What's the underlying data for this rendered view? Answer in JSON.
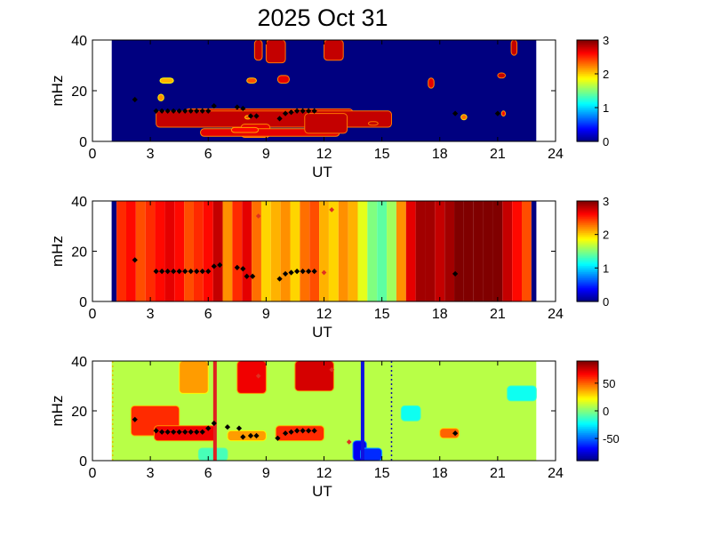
{
  "figure": {
    "title": "2025 Oct 31"
  },
  "chart_data": [
    {
      "type": "heatmap",
      "name": "panel-1",
      "xlabel": "UT",
      "ylabel": "mHz",
      "xlim": [
        0,
        24
      ],
      "ylim": [
        0,
        40
      ],
      "xticks": [
        "0",
        "3",
        "6",
        "9",
        "12",
        "15",
        "18",
        "21",
        "24"
      ],
      "yticks": [
        "0",
        "20",
        "40"
      ],
      "data_x_range": [
        1,
        23
      ],
      "colorbar": {
        "range": [
          0,
          3
        ],
        "ticks": [
          "0",
          "1",
          "2",
          "3"
        ]
      },
      "background_value": 0,
      "patches": [
        {
          "x": [
            4.8,
            13.5
          ],
          "y": [
            6.4,
            12.8
          ],
          "value": 2.8
        },
        {
          "x": [
            3.3,
            15.5
          ],
          "y": [
            5.6,
            12.0
          ],
          "value": 2.8
        },
        {
          "x": [
            7.7,
            9.2
          ],
          "y": [
            1.6,
            6.8
          ],
          "value": 2.7
        },
        {
          "x": [
            5.6,
            12.8
          ],
          "y": [
            2.0,
            5.0
          ],
          "value": 2.7
        },
        {
          "x": [
            11.0,
            13.2
          ],
          "y": [
            3.2,
            11.0
          ],
          "value": 2.8
        },
        {
          "x": [
            8.4,
            8.8
          ],
          "y": [
            32.0,
            40.0
          ],
          "value": 2.8
        },
        {
          "x": [
            9.0,
            10.0
          ],
          "y": [
            31.0,
            40.0
          ],
          "value": 2.8
        },
        {
          "x": [
            12.0,
            13.0
          ],
          "y": [
            32.0,
            40.0
          ],
          "value": 2.8
        },
        {
          "x": [
            8.0,
            8.5
          ],
          "y": [
            23.0,
            25.0
          ],
          "value": 2.4
        },
        {
          "x": [
            17.4,
            17.7
          ],
          "y": [
            21.0,
            25.0
          ],
          "value": 2.7
        },
        {
          "x": [
            9.6,
            10.2
          ],
          "y": [
            23.0,
            26.0
          ],
          "value": 2.7
        },
        {
          "x": [
            7.2,
            8.6
          ],
          "y": [
            3.5,
            5.5
          ],
          "value": 2.6
        },
        {
          "x": [
            7.9,
            8.2
          ],
          "y": [
            8.8,
            10.2
          ],
          "value": 2.4
        },
        {
          "x": [
            3.4,
            3.7
          ],
          "y": [
            16.0,
            18.6
          ],
          "value": 2.2
        },
        {
          "x": [
            3.5,
            4.2
          ],
          "y": [
            23.0,
            25.0
          ],
          "value": 2.1
        },
        {
          "x": [
            14.3,
            14.8
          ],
          "y": [
            6.4,
            7.8
          ],
          "value": 2.8
        },
        {
          "x": [
            19.1,
            19.4
          ],
          "y": [
            8.5,
            10.6
          ],
          "value": 2.3
        },
        {
          "x": [
            21.2,
            21.4
          ],
          "y": [
            10.0,
            12.0
          ],
          "value": 2.6
        },
        {
          "x": [
            21.7,
            22.0
          ],
          "y": [
            34.0,
            40.0
          ],
          "value": 2.8
        },
        {
          "x": [
            21.0,
            21.4
          ],
          "y": [
            25.0,
            27.0
          ],
          "value": 2.8
        }
      ],
      "markers": {
        "black": [
          [
            2.2,
            16.5
          ],
          [
            3.3,
            12.0
          ],
          [
            3.6,
            12.0
          ],
          [
            3.9,
            12.0
          ],
          [
            4.2,
            12.0
          ],
          [
            4.5,
            12.0
          ],
          [
            4.8,
            12.0
          ],
          [
            5.1,
            12.0
          ],
          [
            5.4,
            12.0
          ],
          [
            5.7,
            12.0
          ],
          [
            6.0,
            12.0
          ],
          [
            6.3,
            14.0
          ],
          [
            7.5,
            13.5
          ],
          [
            7.8,
            13.0
          ],
          [
            8.2,
            10.0
          ],
          [
            8.5,
            10.0
          ],
          [
            9.7,
            9.0
          ],
          [
            10.0,
            11.0
          ],
          [
            10.3,
            11.5
          ],
          [
            10.6,
            12.0
          ],
          [
            10.9,
            12.0
          ],
          [
            11.2,
            12.0
          ],
          [
            11.5,
            12.0
          ],
          [
            18.8,
            11.0
          ],
          [
            21.0,
            11.0
          ]
        ],
        "red": []
      }
    },
    {
      "type": "heatmap",
      "name": "panel-2",
      "xlabel": "UT",
      "ylabel": "mHz",
      "xlim": [
        0,
        24
      ],
      "ylim": [
        0,
        40
      ],
      "xticks": [
        "0",
        "3",
        "6",
        "9",
        "12",
        "15",
        "18",
        "21",
        "24"
      ],
      "yticks": [
        "0",
        "20",
        "40"
      ],
      "data_x_range": [
        1,
        23
      ],
      "colorbar": {
        "range": [
          0,
          3
        ],
        "ticks": [
          "0",
          "1",
          "2",
          "3"
        ]
      },
      "columns": [
        {
          "x": 1.0,
          "value": 0.0
        },
        {
          "x": 1.5,
          "value": 2.5
        },
        {
          "x": 2.0,
          "value": 2.6
        },
        {
          "x": 2.5,
          "value": 2.4
        },
        {
          "x": 3.0,
          "value": 2.5
        },
        {
          "x": 3.5,
          "value": 2.6
        },
        {
          "x": 4.0,
          "value": 2.7
        },
        {
          "x": 4.5,
          "value": 2.6
        },
        {
          "x": 5.0,
          "value": 2.4
        },
        {
          "x": 5.5,
          "value": 2.5
        },
        {
          "x": 6.0,
          "value": 2.6
        },
        {
          "x": 6.5,
          "value": 2.8
        },
        {
          "x": 7.0,
          "value": 2.2
        },
        {
          "x": 7.5,
          "value": 2.5
        },
        {
          "x": 8.0,
          "value": 2.7
        },
        {
          "x": 8.5,
          "value": 2.3
        },
        {
          "x": 9.0,
          "value": 2.0
        },
        {
          "x": 9.5,
          "value": 2.1
        },
        {
          "x": 10.0,
          "value": 2.2
        },
        {
          "x": 10.5,
          "value": 2.0
        },
        {
          "x": 11.0,
          "value": 2.3
        },
        {
          "x": 11.5,
          "value": 2.4
        },
        {
          "x": 12.0,
          "value": 2.1
        },
        {
          "x": 12.5,
          "value": 2.0
        },
        {
          "x": 13.0,
          "value": 2.2
        },
        {
          "x": 13.5,
          "value": 2.1
        },
        {
          "x": 14.0,
          "value": 1.8
        },
        {
          "x": 14.5,
          "value": 1.5
        },
        {
          "x": 15.0,
          "value": 1.4
        },
        {
          "x": 15.5,
          "value": 1.6
        },
        {
          "x": 16.0,
          "value": 2.2
        },
        {
          "x": 16.5,
          "value": 2.7
        },
        {
          "x": 17.0,
          "value": 2.9
        },
        {
          "x": 17.5,
          "value": 2.9
        },
        {
          "x": 18.0,
          "value": 2.8
        },
        {
          "x": 18.5,
          "value": 2.9
        },
        {
          "x": 19.0,
          "value": 3.0
        },
        {
          "x": 19.5,
          "value": 3.0
        },
        {
          "x": 20.0,
          "value": 3.0
        },
        {
          "x": 20.5,
          "value": 3.0
        },
        {
          "x": 21.0,
          "value": 3.0
        },
        {
          "x": 21.5,
          "value": 2.8
        },
        {
          "x": 22.0,
          "value": 2.6
        },
        {
          "x": 22.5,
          "value": 2.4
        },
        {
          "x": 23.0,
          "value": 0.0
        }
      ],
      "markers": {
        "black": [
          [
            2.2,
            16.5
          ],
          [
            3.3,
            12.0
          ],
          [
            3.6,
            12.0
          ],
          [
            3.9,
            12.0
          ],
          [
            4.2,
            12.0
          ],
          [
            4.5,
            12.0
          ],
          [
            4.8,
            12.0
          ],
          [
            5.1,
            12.0
          ],
          [
            5.4,
            12.0
          ],
          [
            5.7,
            12.0
          ],
          [
            6.0,
            12.0
          ],
          [
            6.3,
            14.0
          ],
          [
            6.6,
            14.5
          ],
          [
            7.5,
            13.5
          ],
          [
            7.8,
            13.0
          ],
          [
            8.0,
            10.0
          ],
          [
            8.3,
            10.0
          ],
          [
            9.7,
            9.0
          ],
          [
            10.0,
            11.0
          ],
          [
            10.3,
            11.5
          ],
          [
            10.6,
            12.0
          ],
          [
            10.9,
            12.0
          ],
          [
            11.2,
            12.0
          ],
          [
            11.5,
            12.0
          ],
          [
            18.8,
            11.0
          ]
        ],
        "red": [
          [
            8.6,
            34.0
          ],
          [
            12.4,
            36.5
          ],
          [
            12.0,
            11.5
          ]
        ]
      }
    },
    {
      "type": "heatmap",
      "name": "panel-3",
      "xlabel": "UT",
      "ylabel": "mHz",
      "xlim": [
        0,
        24
      ],
      "ylim": [
        0,
        40
      ],
      "xticks": [
        "0",
        "3",
        "6",
        "9",
        "12",
        "15",
        "18",
        "21",
        "24"
      ],
      "yticks": [
        "0",
        "20",
        "40"
      ],
      "data_x_range": [
        1,
        23
      ],
      "colorbar": {
        "range": [
          -90,
          90
        ],
        "ticks": [
          "-50",
          "0",
          "50"
        ]
      },
      "background_value": 10,
      "patches": [
        {
          "x": [
            2.0,
            4.5
          ],
          "y": [
            10.0,
            22.0
          ],
          "value": 60
        },
        {
          "x": [
            3.2,
            6.4
          ],
          "y": [
            8.0,
            14.0
          ],
          "value": 70
        },
        {
          "x": [
            4.5,
            6.0
          ],
          "y": [
            27.0,
            40.0
          ],
          "value": 40
        },
        {
          "x": [
            7.5,
            9.0
          ],
          "y": [
            27.0,
            40.0
          ],
          "value": 70
        },
        {
          "x": [
            10.5,
            12.5
          ],
          "y": [
            28.0,
            40.0
          ],
          "value": 75
        },
        {
          "x": [
            9.5,
            12.0
          ],
          "y": [
            8.0,
            14.0
          ],
          "value": 60
        },
        {
          "x": [
            7.0,
            9.0
          ],
          "y": [
            8.0,
            12.0
          ],
          "value": 40
        },
        {
          "x": [
            13.5,
            14.2
          ],
          "y": [
            0.0,
            8.0
          ],
          "value": -70
        },
        {
          "x": [
            13.9,
            15.0
          ],
          "y": [
            0.0,
            5.0
          ],
          "value": -60
        },
        {
          "x": [
            16.0,
            17.0
          ],
          "y": [
            16.0,
            22.0
          ],
          "value": -20
        },
        {
          "x": [
            18.0,
            19.0
          ],
          "y": [
            9.0,
            13.0
          ],
          "value": 50
        },
        {
          "x": [
            21.5,
            23.0
          ],
          "y": [
            24.0,
            30.0
          ],
          "value": -20
        },
        {
          "x": [
            5.5,
            7.0
          ],
          "y": [
            0.0,
            5.0
          ],
          "value": -10
        }
      ],
      "vlines": [
        {
          "x": 6.35,
          "color": "#e02020",
          "style": "solid"
        },
        {
          "x": 14.0,
          "color": "#1010e0",
          "style": "solid"
        },
        {
          "x": 15.5,
          "color": "#1010a0",
          "style": "dotted"
        },
        {
          "x": 1.05,
          "color": "#e0c000",
          "style": "dotted"
        }
      ],
      "markers": {
        "black": [
          [
            2.2,
            16.5
          ],
          [
            3.3,
            12.0
          ],
          [
            3.6,
            11.5
          ],
          [
            3.9,
            11.5
          ],
          [
            4.2,
            11.5
          ],
          [
            4.5,
            11.5
          ],
          [
            4.8,
            11.5
          ],
          [
            5.1,
            11.5
          ],
          [
            5.4,
            11.5
          ],
          [
            5.7,
            11.5
          ],
          [
            6.0,
            13.0
          ],
          [
            6.3,
            15.0
          ],
          [
            7.0,
            13.5
          ],
          [
            7.6,
            13.0
          ],
          [
            7.8,
            9.5
          ],
          [
            8.2,
            10.0
          ],
          [
            8.5,
            10.0
          ],
          [
            9.6,
            9.0
          ],
          [
            10.0,
            11.0
          ],
          [
            10.3,
            11.5
          ],
          [
            10.6,
            12.0
          ],
          [
            10.9,
            12.0
          ],
          [
            11.2,
            12.0
          ],
          [
            11.5,
            12.0
          ],
          [
            18.8,
            11.0
          ]
        ],
        "red": [
          [
            8.6,
            34.0
          ],
          [
            12.4,
            36.5
          ],
          [
            13.3,
            7.5
          ]
        ]
      }
    }
  ]
}
